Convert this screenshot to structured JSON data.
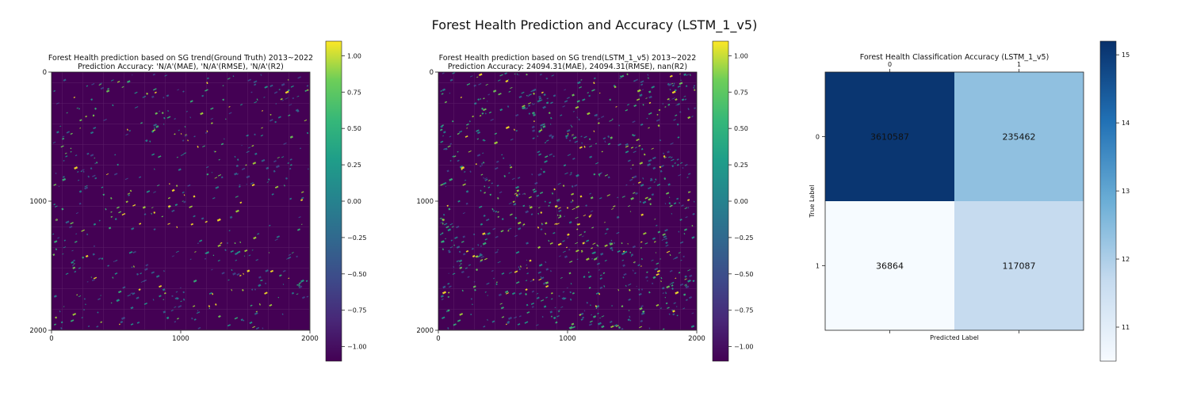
{
  "figure": {
    "suptitle": "Forest Health Prediction and Accuracy (LSTM_1_v5)"
  },
  "chart_data": [
    {
      "type": "heatmap",
      "title": "Forest Health prediction based on SG trend(Ground Truth) 2013~2022",
      "subtitle": "Prediction Accuracy: 'N/A'(MAE), 'N/A'(RMSE), 'N/A'(R2)",
      "xlim": [
        0,
        2000
      ],
      "ylim": [
        2000,
        0
      ],
      "x_ticks": [
        "0",
        "1000",
        "2000"
      ],
      "y_ticks": [
        "0",
        "1000",
        "2000"
      ],
      "colormap": "viridis",
      "colorbar": {
        "range": [
          -1.1,
          1.1
        ],
        "ticks": [
          "1.00",
          "0.75",
          "0.50",
          "0.25",
          "0.00",
          "−0.25",
          "−0.50",
          "−0.75",
          "−1.00"
        ],
        "tick_values": [
          1.0,
          0.75,
          0.5,
          0.25,
          0.0,
          -0.25,
          -0.5,
          -0.75,
          -1.0
        ]
      },
      "background_value": -1.0,
      "density": 0.55
    },
    {
      "type": "heatmap",
      "title": "Forest Health prediction based on SG trend(LSTM_1_v5) 2013~2022",
      "subtitle": "Prediction Accuracy: 24094.31(MAE), 24094.31(RMSE), nan(R2)",
      "xlim": [
        0,
        2000
      ],
      "ylim": [
        2000,
        0
      ],
      "x_ticks": [
        "0",
        "1000",
        "2000"
      ],
      "y_ticks": [
        "0",
        "1000",
        "2000"
      ],
      "colormap": "viridis",
      "colorbar": {
        "range": [
          -1.1,
          1.1
        ],
        "ticks": [
          "1.00",
          "0.75",
          "0.50",
          "0.25",
          "0.00",
          "−0.25",
          "−0.50",
          "−0.75",
          "−1.00"
        ],
        "tick_values": [
          1.0,
          0.75,
          0.5,
          0.25,
          0.0,
          -0.25,
          -0.5,
          -0.75,
          -1.0
        ]
      },
      "background_value": -1.0,
      "density": 1.0
    },
    {
      "type": "heatmap",
      "title": "Forest Health Classification Accuracy (LSTM_1_v5)",
      "xlabel": "Predicted Label",
      "ylabel": "True Label",
      "x_ticks": [
        "0",
        "1"
      ],
      "y_ticks": [
        "0",
        "1"
      ],
      "matrix": [
        [
          3610587,
          235462
        ],
        [
          36864,
          117087
        ]
      ],
      "cell_labels": [
        [
          "3610587",
          "235462"
        ],
        [
          "36864",
          "117087"
        ]
      ],
      "colormap": "Blues (log scale)",
      "colorbar": {
        "range": [
          10.5,
          15.2
        ],
        "ticks": [
          "15",
          "14",
          "13",
          "12",
          "11"
        ],
        "tick_values": [
          15,
          14,
          13,
          12,
          11
        ]
      }
    }
  ]
}
